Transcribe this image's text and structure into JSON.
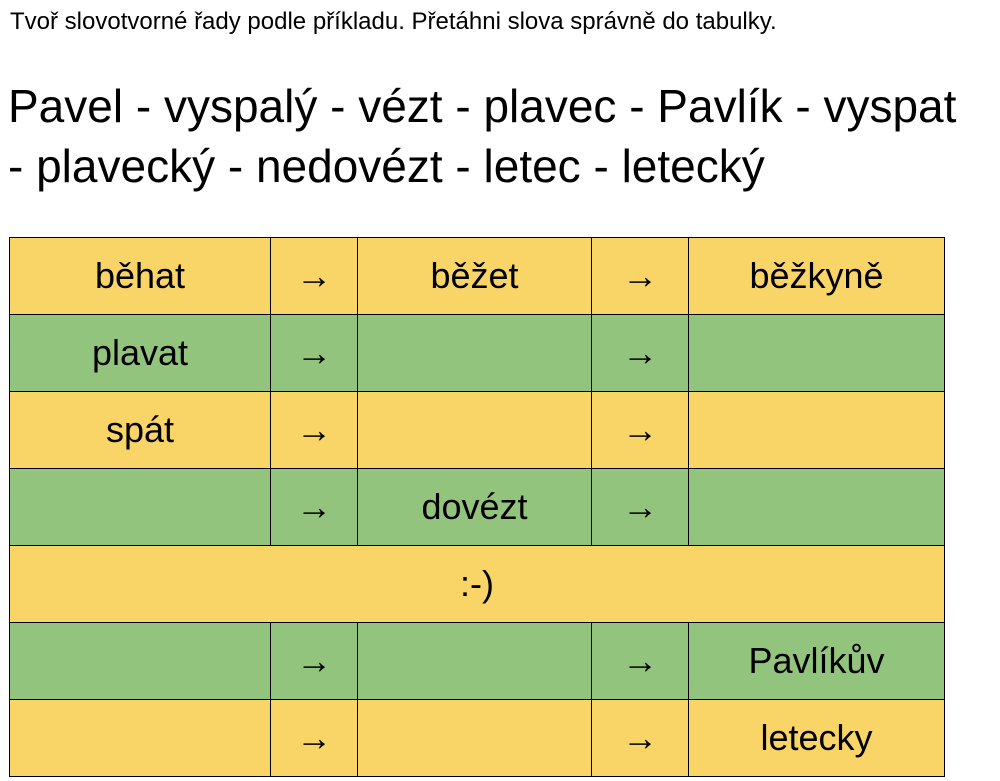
{
  "instruction": "Tvoř slovotvorné řady podle příkladu. Přetáhni slova správně do tabulky.",
  "word_bank": {
    "line1": "Pavel - vyspalý - vézt - plavec - Pavlík - vyspat",
    "line2": "- plavecký - nedovézt - letec - letecký"
  },
  "colors": {
    "yellow": "#f9d466",
    "green": "#93c47d"
  },
  "arrow": "→",
  "table": {
    "rows": [
      {
        "c1": "běhat",
        "c3": "běžet",
        "c5": "běžkyně"
      },
      {
        "c1": "plavat",
        "c3": "",
        "c5": ""
      },
      {
        "c1": "spát",
        "c3": "",
        "c5": ""
      },
      {
        "c1": "",
        "c3": "dovézt",
        "c5": ""
      },
      {
        "merged": ":-)"
      },
      {
        "c1": "",
        "c3": "",
        "c5": "Pavlíkův"
      },
      {
        "c1": "",
        "c3": "",
        "c5": "letecky"
      }
    ]
  }
}
